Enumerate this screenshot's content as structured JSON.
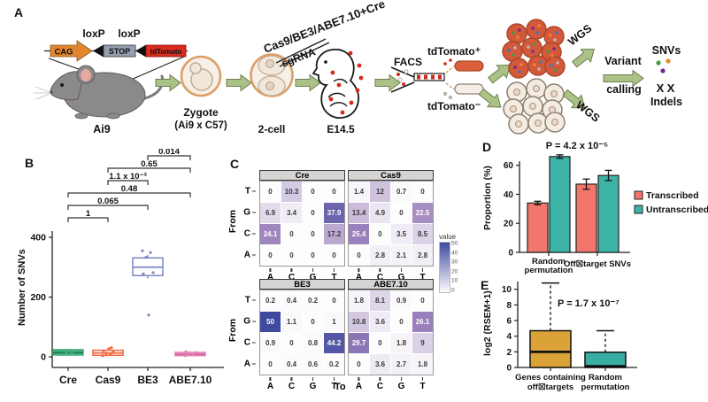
{
  "panels": {
    "a": "A",
    "b": "B",
    "c": "C",
    "d": "D",
    "e": "E"
  },
  "panel_a": {
    "loxp_left": "loxP",
    "loxp_right": "loxP",
    "cag": "CAG",
    "stop": "STOP",
    "tdtomato": "tdTomato",
    "mouse": "Ai9",
    "zygote_line1": "Zygote",
    "zygote_line2": "(Ai9 x C57)",
    "injection": "Cas9/BE3/ABE7.10+Cre",
    "sgrna": "sgRNA",
    "two_cell": "2-cell",
    "embryo": "E14.5",
    "facs": "FACS",
    "tdtomato_pos": "tdTomato⁺",
    "tdtomato_neg": "tdTomato⁻",
    "wgs_top": "WGS",
    "wgs_bottom": "WGS",
    "variant_line1": "Variant",
    "variant_line2": "calling",
    "snvs": "SNVs",
    "x_blue": "X",
    "x_brown": "X",
    "indels": "Indels"
  },
  "chart_data": [
    {
      "id": "B",
      "type": "box",
      "ylabel": "Number of SNVs",
      "yticks": [
        0,
        200,
        400
      ],
      "ylim": [
        0,
        400
      ],
      "categories": [
        "Cre",
        "Cas9",
        "BE3",
        "ABE7.10"
      ],
      "boxes": [
        {
          "name": "Cre",
          "color": "#44ad7e",
          "fill": "#44ad7e",
          "median_color": "#1f7a52",
          "lo": 4,
          "q1": 6,
          "med": 14,
          "q3": 24,
          "hi": 27,
          "points": [
            8,
            12,
            15,
            18,
            22
          ]
        },
        {
          "name": "Cas9",
          "color": "#f0673f",
          "fill": "#ffffff",
          "median_color": "#f0673f",
          "lo": 2,
          "q1": 5,
          "med": 13,
          "q3": 22,
          "hi": 26,
          "points": [
            4,
            8,
            12,
            16,
            20,
            27,
            31
          ]
        },
        {
          "name": "BE3",
          "color": "#7d88c4",
          "fill": "#ffffff",
          "median_color": "#7d88c4",
          "lo": 262,
          "q1": 272,
          "med": 300,
          "q3": 331,
          "hi": 341,
          "points": [
            355,
            349,
            333,
            282,
            278,
            140
          ]
        },
        {
          "name": "ABE7.10",
          "color": "#e57fb3",
          "fill": "#f4c3dc",
          "median_color": "#d45fa2",
          "lo": 2,
          "q1": 4,
          "med": 9,
          "q3": 15,
          "hi": 19,
          "points": [
            4,
            7,
            10,
            14,
            17
          ]
        }
      ],
      "comparisons": [
        {
          "a": 0,
          "b": 1,
          "p": "1"
        },
        {
          "a": 0,
          "b": 2,
          "p": "0.065"
        },
        {
          "a": 0,
          "b": 3,
          "p": "0.48"
        },
        {
          "a": 1,
          "b": 2,
          "p": "1.1 x 10⁻³"
        },
        {
          "a": 1,
          "b": 3,
          "p": "0.65"
        },
        {
          "a": 2,
          "b": 3,
          "p": "0.014"
        }
      ]
    },
    {
      "id": "C",
      "type": "heatmap",
      "row_axis": "From",
      "col_axis": "To",
      "rows": [
        "T",
        "G",
        "C",
        "A"
      ],
      "cols": [
        "A",
        "C",
        "G",
        "T"
      ],
      "legend_title": "value",
      "legend_ticks": [
        50,
        40,
        30,
        20,
        10,
        0
      ],
      "color_scale": {
        "min": 0,
        "mid": 25,
        "max": 50,
        "min_color": "#fdfdfe",
        "mid_color": "#9d82bc",
        "max_color": "#3e4a9e"
      },
      "matrices": [
        {
          "name": "Cre",
          "values": [
            [
              0,
              10.3,
              0,
              0
            ],
            [
              6.9,
              3.4,
              0,
              37.9
            ],
            [
              24.1,
              0,
              0,
              17.2
            ],
            [
              0,
              0,
              0,
              0
            ]
          ]
        },
        {
          "name": "Cas9",
          "values": [
            [
              1.4,
              12,
              0.7,
              0
            ],
            [
              13.4,
              4.9,
              0,
              22.5
            ],
            [
              25.4,
              0,
              3.5,
              8.5
            ],
            [
              0,
              2.8,
              2.1,
              2.8
            ]
          ]
        },
        {
          "name": "BE3",
          "values": [
            [
              0.2,
              0.4,
              0.2,
              0
            ],
            [
              50,
              1.1,
              0,
              1
            ],
            [
              0.9,
              0,
              0.8,
              44.2
            ],
            [
              0,
              0.4,
              0.6,
              0.2
            ]
          ]
        },
        {
          "name": "ABE7.10",
          "values": [
            [
              1.8,
              8.1,
              0.9,
              0
            ],
            [
              10.8,
              3.6,
              0,
              26.1
            ],
            [
              29.7,
              0,
              1.8,
              9
            ],
            [
              0,
              3.6,
              2.7,
              1.8
            ]
          ]
        }
      ]
    },
    {
      "id": "D",
      "type": "bar",
      "p_value": "P = 4.2 x 10⁻⁵",
      "ylabel": "Proportion (%)",
      "yticks": [
        0,
        20,
        40,
        60
      ],
      "ylim": [
        0,
        70
      ],
      "categories": [
        "Random\npermutation",
        "Off☒target SNVs"
      ],
      "series": [
        {
          "name": "Transcribed",
          "color": "#f2766b",
          "values": [
            34,
            47
          ],
          "errors": [
            1.2,
            3.5
          ]
        },
        {
          "name": "Untranscribed",
          "color": "#3cb4a8",
          "values": [
            66,
            53
          ],
          "errors": [
            1.2,
            3.5
          ]
        }
      ],
      "legend_position": "right"
    },
    {
      "id": "E",
      "type": "box",
      "p_value": "P = 1.7 x 10⁻⁷",
      "ylabel": "log2 (RSEM+1)",
      "yticks": [
        0,
        2,
        4,
        6,
        8,
        10
      ],
      "ylim": [
        0,
        11
      ],
      "categories": [
        "Genes containing\noff☒targets",
        "Random\npermutation"
      ],
      "boxes": [
        {
          "name": "Genes containing off☒targets",
          "color": "#dba337",
          "lo": 0,
          "q1": 0,
          "med": 2,
          "q3": 4.7,
          "hi": 10.8
        },
        {
          "name": "Random permutation",
          "color": "#3aada2",
          "lo": 0,
          "q1": 0,
          "med": 0.15,
          "q3": 1.95,
          "hi": 4.7
        }
      ]
    }
  ]
}
